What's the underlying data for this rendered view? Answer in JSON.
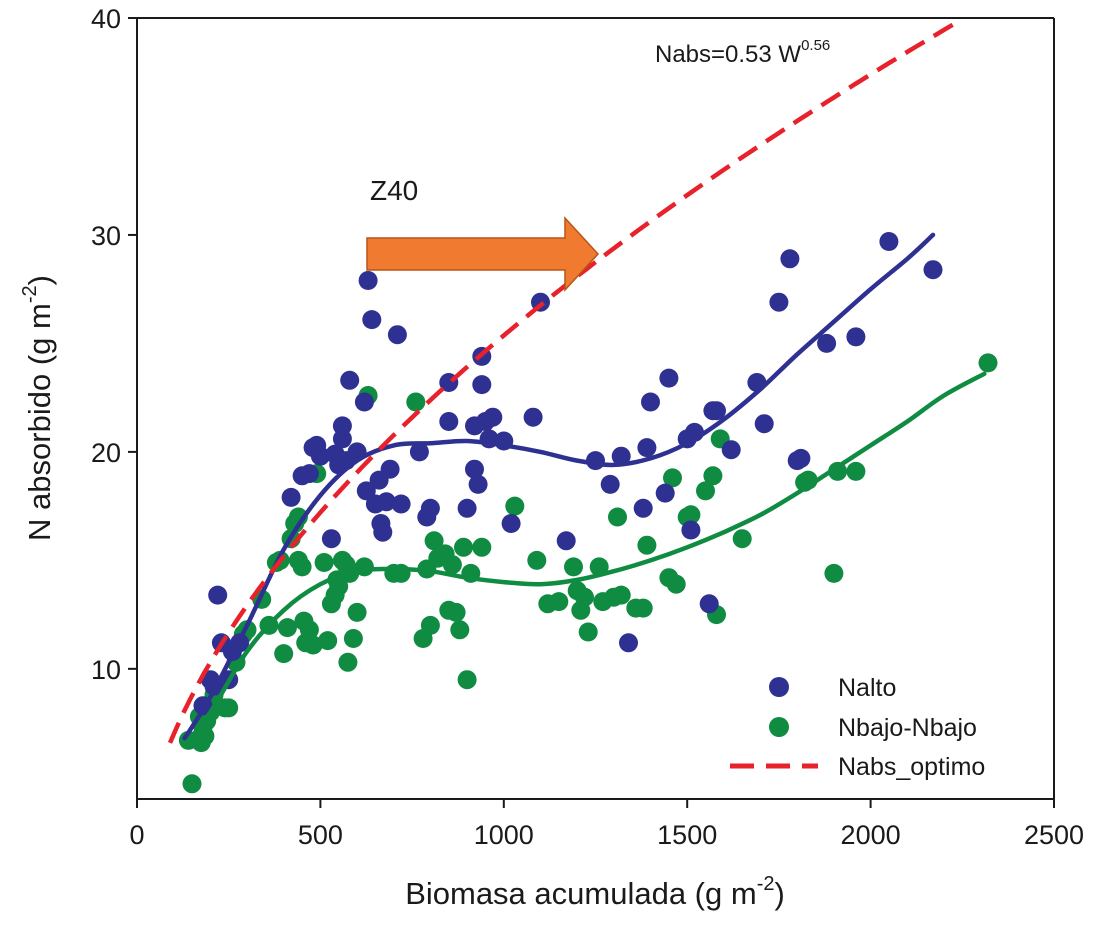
{
  "chart_data": {
    "type": "scatter",
    "xlabel": "Biomasa acumulada (g m",
    "xlabel_sup": "-2",
    "xlabel_end": ")",
    "ylabel": "N absorbido (g m",
    "ylabel_sup": "-2",
    "ylabel_end": ")",
    "xlim": [
      0,
      2500
    ],
    "ylim": [
      4,
      40
    ],
    "xticks": [
      0,
      500,
      1000,
      1500,
      2000,
      2500
    ],
    "yticks": [
      10,
      20,
      30,
      40
    ],
    "grid": false,
    "legend_position": "bottom-right",
    "annotation_formula": "Nabs=0.53 W",
    "annotation_formula_sup": "0.56",
    "arrow_label": "Z40",
    "arrow_color": "#f07a30",
    "series": [
      {
        "name": "Nalto",
        "kind": "points",
        "color": "#2e3192",
        "points": [
          [
            180,
            8.3
          ],
          [
            200,
            9.5
          ],
          [
            210,
            9.2
          ],
          [
            220,
            13.4
          ],
          [
            230,
            11.2
          ],
          [
            250,
            9.5
          ],
          [
            260,
            10.8
          ],
          [
            280,
            11.2
          ],
          [
            420,
            17.9
          ],
          [
            450,
            18.9
          ],
          [
            470,
            19.0
          ],
          [
            480,
            20.2
          ],
          [
            490,
            20.3
          ],
          [
            500,
            19.8
          ],
          [
            530,
            16.0
          ],
          [
            540,
            19.9
          ],
          [
            550,
            19.4
          ],
          [
            560,
            20.6
          ],
          [
            560,
            21.2
          ],
          [
            570,
            19.6
          ],
          [
            580,
            23.3
          ],
          [
            600,
            20.0
          ],
          [
            620,
            22.3
          ],
          [
            625,
            18.2
          ],
          [
            630,
            27.9
          ],
          [
            640,
            26.1
          ],
          [
            650,
            17.6
          ],
          [
            660,
            18.7
          ],
          [
            665,
            16.7
          ],
          [
            670,
            16.3
          ],
          [
            680,
            17.7
          ],
          [
            690,
            19.2
          ],
          [
            710,
            25.4
          ],
          [
            720,
            17.6
          ],
          [
            770,
            20.0
          ],
          [
            790,
            17.0
          ],
          [
            800,
            17.4
          ],
          [
            850,
            23.2
          ],
          [
            850,
            21.4
          ],
          [
            900,
            17.4
          ],
          [
            920,
            19.2
          ],
          [
            920,
            21.2
          ],
          [
            930,
            18.5
          ],
          [
            940,
            23.1
          ],
          [
            940,
            24.4
          ],
          [
            950,
            21.4
          ],
          [
            960,
            20.6
          ],
          [
            970,
            21.6
          ],
          [
            1000,
            20.5
          ],
          [
            1020,
            16.7
          ],
          [
            1080,
            21.6
          ],
          [
            1100,
            26.9
          ],
          [
            1170,
            15.9
          ],
          [
            1250,
            19.6
          ],
          [
            1290,
            18.5
          ],
          [
            1320,
            19.8
          ],
          [
            1340,
            11.2
          ],
          [
            1380,
            17.4
          ],
          [
            1390,
            20.2
          ],
          [
            1400,
            22.3
          ],
          [
            1440,
            18.1
          ],
          [
            1450,
            23.4
          ],
          [
            1500,
            20.6
          ],
          [
            1510,
            16.4
          ],
          [
            1520,
            20.9
          ],
          [
            1560,
            13.0
          ],
          [
            1570,
            21.9
          ],
          [
            1580,
            21.9
          ],
          [
            1620,
            20.1
          ],
          [
            1690,
            23.2
          ],
          [
            1710,
            21.3
          ],
          [
            1750,
            26.9
          ],
          [
            1780,
            28.9
          ],
          [
            1800,
            19.6
          ],
          [
            1810,
            19.7
          ],
          [
            1880,
            25.0
          ],
          [
            1960,
            25.3
          ],
          [
            2050,
            29.7
          ],
          [
            2170,
            28.4
          ]
        ]
      },
      {
        "name": "Nbajo-Nbajo",
        "kind": "points",
        "color": "#0f8c42",
        "points": [
          [
            140,
            6.7
          ],
          [
            150,
            4.7
          ],
          [
            170,
            7.8
          ],
          [
            175,
            6.6
          ],
          [
            180,
            7.3
          ],
          [
            185,
            6.9
          ],
          [
            190,
            7.6
          ],
          [
            200,
            8.0
          ],
          [
            210,
            8.8
          ],
          [
            240,
            8.2
          ],
          [
            250,
            8.2
          ],
          [
            270,
            10.3
          ],
          [
            290,
            11.6
          ],
          [
            300,
            11.8
          ],
          [
            340,
            13.2
          ],
          [
            360,
            12.0
          ],
          [
            380,
            14.9
          ],
          [
            390,
            15.0
          ],
          [
            400,
            10.7
          ],
          [
            410,
            11.9
          ],
          [
            420,
            16.0
          ],
          [
            430,
            16.7
          ],
          [
            440,
            17.0
          ],
          [
            440,
            15.0
          ],
          [
            450,
            14.7
          ],
          [
            455,
            12.2
          ],
          [
            460,
            11.2
          ],
          [
            470,
            11.8
          ],
          [
            480,
            11.1
          ],
          [
            490,
            19.0
          ],
          [
            510,
            14.9
          ],
          [
            520,
            11.3
          ],
          [
            530,
            13.0
          ],
          [
            540,
            13.4
          ],
          [
            545,
            14.1
          ],
          [
            550,
            13.8
          ],
          [
            560,
            15.0
          ],
          [
            570,
            14.8
          ],
          [
            575,
            10.3
          ],
          [
            580,
            14.4
          ],
          [
            590,
            11.4
          ],
          [
            600,
            12.6
          ],
          [
            620,
            14.7
          ],
          [
            630,
            22.6
          ],
          [
            700,
            14.4
          ],
          [
            720,
            14.4
          ],
          [
            760,
            22.3
          ],
          [
            780,
            11.4
          ],
          [
            790,
            14.6
          ],
          [
            800,
            12.0
          ],
          [
            810,
            15.9
          ],
          [
            820,
            15.1
          ],
          [
            840,
            15.3
          ],
          [
            850,
            12.7
          ],
          [
            860,
            14.8
          ],
          [
            870,
            12.6
          ],
          [
            880,
            11.8
          ],
          [
            890,
            15.6
          ],
          [
            900,
            9.5
          ],
          [
            910,
            14.4
          ],
          [
            940,
            15.6
          ],
          [
            1030,
            17.5
          ],
          [
            1090,
            15.0
          ],
          [
            1120,
            13.0
          ],
          [
            1150,
            13.1
          ],
          [
            1190,
            14.7
          ],
          [
            1200,
            13.6
          ],
          [
            1210,
            12.7
          ],
          [
            1220,
            13.3
          ],
          [
            1230,
            11.7
          ],
          [
            1260,
            14.7
          ],
          [
            1270,
            13.1
          ],
          [
            1300,
            13.3
          ],
          [
            1310,
            17.0
          ],
          [
            1320,
            13.4
          ],
          [
            1360,
            12.8
          ],
          [
            1380,
            12.8
          ],
          [
            1390,
            15.7
          ],
          [
            1450,
            14.2
          ],
          [
            1460,
            18.8
          ],
          [
            1470,
            13.9
          ],
          [
            1500,
            17.0
          ],
          [
            1510,
            17.1
          ],
          [
            1550,
            18.2
          ],
          [
            1570,
            18.9
          ],
          [
            1580,
            12.5
          ],
          [
            1590,
            20.6
          ],
          [
            1650,
            16.0
          ],
          [
            1820,
            18.6
          ],
          [
            1830,
            18.7
          ],
          [
            1900,
            14.4
          ],
          [
            1910,
            19.1
          ],
          [
            1960,
            19.1
          ],
          [
            2320,
            24.1
          ]
        ]
      },
      {
        "name": "Nalto fit",
        "kind": "line",
        "color": "#2e3192",
        "points": [
          [
            130,
            6.8
          ],
          [
            200,
            8.7
          ],
          [
            300,
            12.0
          ],
          [
            400,
            15.5
          ],
          [
            500,
            18.0
          ],
          [
            600,
            19.6
          ],
          [
            700,
            20.3
          ],
          [
            800,
            20.4
          ],
          [
            900,
            20.5
          ],
          [
            1000,
            20.3
          ],
          [
            1100,
            20.0
          ],
          [
            1200,
            19.6
          ],
          [
            1300,
            19.4
          ],
          [
            1400,
            19.7
          ],
          [
            1500,
            20.4
          ],
          [
            1600,
            21.5
          ],
          [
            1700,
            22.9
          ],
          [
            1800,
            24.5
          ],
          [
            1900,
            26.0
          ],
          [
            2000,
            27.5
          ],
          [
            2100,
            28.9
          ],
          [
            2170,
            30.0
          ]
        ]
      },
      {
        "name": "Nbajo-Nbajo fit",
        "kind": "line",
        "color": "#0f8c42",
        "points": [
          [
            130,
            6.5
          ],
          [
            200,
            8.0
          ],
          [
            300,
            10.8
          ],
          [
            400,
            12.7
          ],
          [
            500,
            13.9
          ],
          [
            600,
            14.5
          ],
          [
            700,
            14.6
          ],
          [
            800,
            14.5
          ],
          [
            900,
            14.2
          ],
          [
            1000,
            14.0
          ],
          [
            1100,
            13.9
          ],
          [
            1200,
            14.1
          ],
          [
            1300,
            14.5
          ],
          [
            1400,
            15.0
          ],
          [
            1500,
            15.6
          ],
          [
            1600,
            16.3
          ],
          [
            1700,
            17.1
          ],
          [
            1800,
            18.1
          ],
          [
            1900,
            19.2
          ],
          [
            2000,
            20.3
          ],
          [
            2100,
            21.4
          ],
          [
            2200,
            22.6
          ],
          [
            2310,
            23.6
          ]
        ]
      },
      {
        "name": "Nabs_optimo",
        "kind": "dashed-line",
        "color": "#e8212a",
        "a": 0.53,
        "b": 0.56,
        "x_range": [
          90,
          2330
        ]
      }
    ],
    "legend": [
      "Nalto",
      "Nbajo-Nbajo",
      "Nabs_optimo"
    ]
  }
}
